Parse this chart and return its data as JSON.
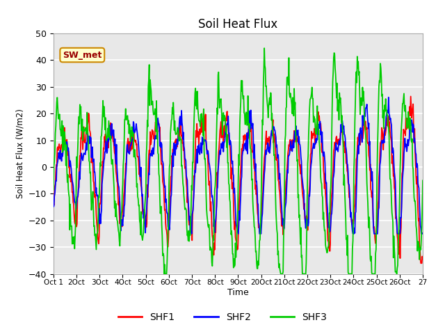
{
  "title": "Soil Heat Flux",
  "ylabel": "Soil Heat Flux (W/m2)",
  "xlabel": "Time",
  "ylim": [
    -40,
    50
  ],
  "fig_bg": "#ffffff",
  "plot_bg": "#e8e8e8",
  "grid_color": "#ffffff",
  "colors": {
    "SHF1": "#ff0000",
    "SHF2": "#0000ff",
    "SHF3": "#00cc00"
  },
  "linewidth": 1.3,
  "xtick_labels": [
    "Oct 1",
    "2Oct",
    "3Oct",
    "4Oct",
    "5Oct",
    "6Oct",
    "7Oct",
    "8Oct",
    "9Oct",
    "20Oct",
    "21Oct",
    "22Oct",
    "23Oct",
    "24Oct",
    "25Oct",
    "26Oct",
    "27"
  ],
  "annotation_text": "SW_met",
  "annotation_facecolor": "#ffffcc",
  "annotation_edgecolor": "#cc8800",
  "n_days": 16,
  "seed": 7
}
